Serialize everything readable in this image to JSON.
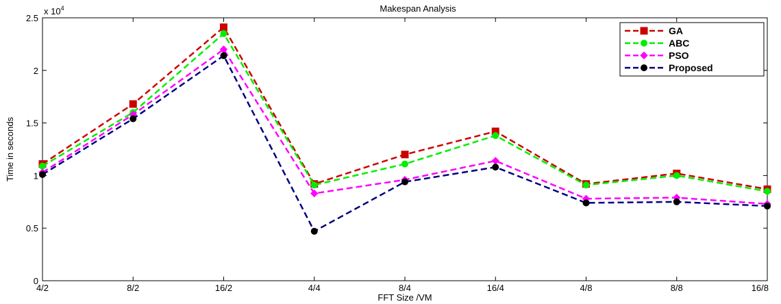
{
  "chart_data": {
    "type": "line",
    "title": "Makespan Analysis",
    "xlabel": "FFT Size /VM",
    "ylabel": "Time in seconds",
    "y_multiplier": "x 10",
    "y_multiplier_exp": "4",
    "categories": [
      "4/2",
      "8/2",
      "16/2",
      "4/4",
      "8/4",
      "16/4",
      "4/8",
      "8/8",
      "16/8"
    ],
    "ylim": [
      0,
      2.5
    ],
    "yticks": [
      "0",
      "0.5",
      "1",
      "1.5",
      "2",
      "2.5"
    ],
    "legend_position": "top-right",
    "grid": false,
    "series": [
      {
        "name": "GA",
        "color": "#cc0000",
        "marker": "square",
        "values": [
          1.11,
          1.68,
          2.41,
          0.92,
          1.2,
          1.42,
          0.92,
          1.02,
          0.87
        ]
      },
      {
        "name": "ABC",
        "color": "#00ee00",
        "marker": "circle",
        "values": [
          1.09,
          1.6,
          2.35,
          0.91,
          1.11,
          1.38,
          0.91,
          1.0,
          0.85
        ]
      },
      {
        "name": "PSO",
        "color": "#ff00ff",
        "marker": "diamond",
        "values": [
          1.03,
          1.58,
          2.2,
          0.83,
          0.96,
          1.14,
          0.78,
          0.79,
          0.73
        ]
      },
      {
        "name": "Proposed",
        "color": "#000080",
        "marker": "circle-dark",
        "values": [
          1.01,
          1.54,
          2.14,
          0.47,
          0.94,
          1.08,
          0.74,
          0.75,
          0.71
        ]
      }
    ]
  }
}
